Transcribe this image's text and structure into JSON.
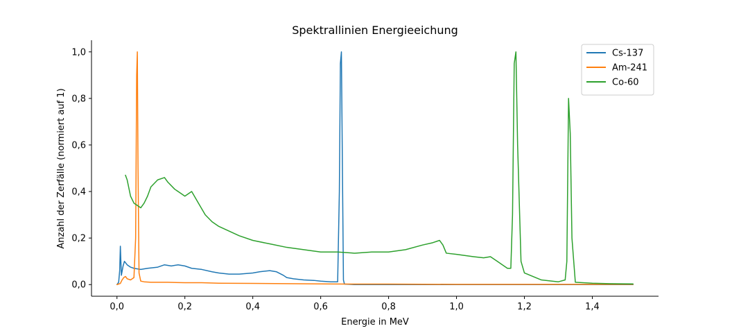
{
  "chart_data": {
    "type": "line",
    "title": "Spektrallinien Energieeichung",
    "xlabel": "Energie in MeV",
    "ylabel": "Anzahl der Zerfälle (normiert auf 1)",
    "xlim": [
      -0.075,
      1.595
    ],
    "ylim": [
      -0.05,
      1.05
    ],
    "x_ticks": [
      0.0,
      0.2,
      0.4,
      0.6,
      0.8,
      1.0,
      1.2,
      1.4
    ],
    "x_tick_labels": [
      "0,0",
      "0,2",
      "0,4",
      "0,6",
      "0,8",
      "1,0",
      "1,2",
      "1,4"
    ],
    "y_ticks": [
      0.0,
      0.2,
      0.4,
      0.6,
      0.8,
      1.0
    ],
    "y_tick_labels": [
      "0,0",
      "0,2",
      "0,4",
      "0,6",
      "0,8",
      "1,0"
    ],
    "grid": false,
    "legend_position": "top-right",
    "series": [
      {
        "name": "Cs-137",
        "color": "#1f77b4",
        "x": [
          0.0,
          0.005,
          0.008,
          0.01,
          0.013,
          0.018,
          0.022,
          0.03,
          0.04,
          0.05,
          0.07,
          0.09,
          0.12,
          0.14,
          0.16,
          0.18,
          0.2,
          0.22,
          0.25,
          0.28,
          0.3,
          0.33,
          0.36,
          0.4,
          0.42,
          0.45,
          0.47,
          0.49,
          0.5,
          0.52,
          0.55,
          0.58,
          0.6,
          0.63,
          0.65,
          0.655,
          0.658,
          0.661,
          0.664,
          0.667,
          0.67,
          0.7,
          0.8,
          0.9,
          1.0,
          1.1,
          1.2,
          1.3,
          1.4,
          1.52
        ],
        "y": [
          0.0,
          0.01,
          0.06,
          0.165,
          0.04,
          0.08,
          0.1,
          0.085,
          0.075,
          0.07,
          0.065,
          0.07,
          0.075,
          0.085,
          0.08,
          0.085,
          0.08,
          0.07,
          0.065,
          0.055,
          0.05,
          0.045,
          0.045,
          0.05,
          0.055,
          0.06,
          0.055,
          0.04,
          0.03,
          0.025,
          0.02,
          0.018,
          0.015,
          0.012,
          0.012,
          0.4,
          0.95,
          1.0,
          0.5,
          0.02,
          0.002,
          0.0,
          0.0,
          0.0,
          0.0,
          0.0,
          0.0,
          0.0,
          0.0,
          0.0
        ]
      },
      {
        "name": "Am-241",
        "color": "#ff7f0e",
        "x": [
          0.0,
          0.01,
          0.015,
          0.02,
          0.025,
          0.03,
          0.04,
          0.05,
          0.055,
          0.058,
          0.06,
          0.062,
          0.065,
          0.07,
          0.08,
          0.1,
          0.15,
          0.2,
          0.25,
          0.3,
          0.4,
          0.5,
          0.6,
          0.7,
          0.8,
          1.0,
          1.2,
          1.4,
          1.52
        ],
        "y": [
          0.0,
          0.005,
          0.02,
          0.03,
          0.035,
          0.025,
          0.02,
          0.03,
          0.2,
          0.9,
          1.0,
          0.5,
          0.05,
          0.015,
          0.012,
          0.01,
          0.01,
          0.008,
          0.008,
          0.006,
          0.005,
          0.004,
          0.003,
          0.002,
          0.002,
          0.001,
          0.001,
          0.001,
          0.001
        ]
      },
      {
        "name": "Co-60",
        "color": "#2ca02c",
        "x": [
          0.025,
          0.03,
          0.04,
          0.05,
          0.06,
          0.07,
          0.08,
          0.09,
          0.1,
          0.12,
          0.14,
          0.15,
          0.17,
          0.18,
          0.2,
          0.22,
          0.24,
          0.26,
          0.28,
          0.3,
          0.33,
          0.36,
          0.4,
          0.45,
          0.5,
          0.55,
          0.6,
          0.65,
          0.7,
          0.75,
          0.8,
          0.85,
          0.9,
          0.93,
          0.95,
          0.96,
          0.97,
          1.0,
          1.05,
          1.08,
          1.1,
          1.12,
          1.15,
          1.16,
          1.165,
          1.17,
          1.175,
          1.18,
          1.19,
          1.2,
          1.25,
          1.3,
          1.32,
          1.325,
          1.33,
          1.335,
          1.34,
          1.35,
          1.4,
          1.45,
          1.52
        ],
        "y": [
          0.47,
          0.45,
          0.38,
          0.35,
          0.34,
          0.33,
          0.35,
          0.38,
          0.42,
          0.45,
          0.46,
          0.44,
          0.41,
          0.4,
          0.38,
          0.4,
          0.35,
          0.3,
          0.27,
          0.25,
          0.23,
          0.21,
          0.19,
          0.175,
          0.16,
          0.15,
          0.14,
          0.14,
          0.135,
          0.14,
          0.14,
          0.15,
          0.17,
          0.18,
          0.19,
          0.17,
          0.135,
          0.13,
          0.12,
          0.115,
          0.12,
          0.1,
          0.07,
          0.07,
          0.3,
          0.95,
          1.0,
          0.6,
          0.1,
          0.05,
          0.02,
          0.012,
          0.02,
          0.1,
          0.8,
          0.65,
          0.2,
          0.01,
          0.006,
          0.004,
          0.003
        ]
      }
    ]
  }
}
